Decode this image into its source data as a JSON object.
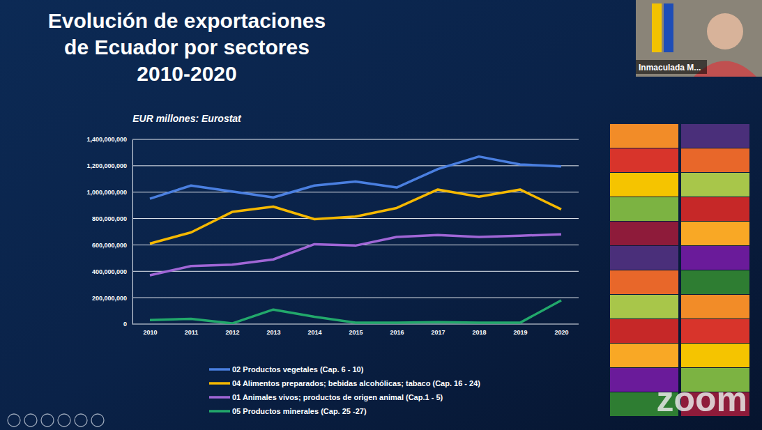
{
  "chart_data": {
    "type": "line",
    "title": "Evolución de exportaciones de Ecuador por sectores 2010-2020",
    "subtitle": "EUR millones: Eurostat",
    "categories": [
      "2010",
      "2011",
      "2012",
      "2013",
      "2014",
      "2015",
      "2016",
      "2017",
      "2018",
      "2019",
      "2020"
    ],
    "series": [
      {
        "name": "02 Productos vegetales (Cap. 6 - 10)",
        "color": "#4a7fe0",
        "values": [
          950000000,
          1050000000,
          1005000000,
          960000000,
          1050000000,
          1080000000,
          1035000000,
          1175000000,
          1270000000,
          1210000000,
          1195000000
        ]
      },
      {
        "name": "04 Alimentos preparados; bebidas alcohólicas; tabaco (Cap. 16 - 24)",
        "color": "#f5b800",
        "values": [
          610000000,
          695000000,
          850000000,
          890000000,
          795000000,
          815000000,
          880000000,
          1020000000,
          965000000,
          1020000000,
          870000000
        ]
      },
      {
        "name": "01 Animales vivos; productos de origen animal (Cap.1 - 5)",
        "color": "#a066d6",
        "values": [
          370000000,
          440000000,
          450000000,
          490000000,
          605000000,
          595000000,
          660000000,
          675000000,
          660000000,
          670000000,
          680000000
        ]
      },
      {
        "name": "05 Productos minerales (Cap. 25 -27)",
        "color": "#22a86b",
        "values": [
          30000000,
          40000000,
          5000000,
          110000000,
          55000000,
          10000000,
          10000000,
          15000000,
          10000000,
          10000000,
          180000000
        ]
      }
    ],
    "ylim": [
      0,
      1400000000
    ],
    "yticks": [
      0,
      {
        "value": 200000000,
        "label": "200,000,000"
      },
      {
        "value": 400000000,
        "label": "400,000,000"
      },
      {
        "value": 600000000,
        "label": "600,000,000"
      },
      {
        "value": 800000000,
        "label": "800,000,000"
      },
      {
        "value": 1000000000,
        "label": "1,000,000,000"
      },
      {
        "value": 1200000000,
        "label": "1,200,000,000"
      },
      {
        "value": 1400000000,
        "label": "1,400,000,000"
      }
    ],
    "grid": true,
    "legend": "bottom",
    "line_style": "solid",
    "annotations": [
      "Inmaculada M...",
      "zoom"
    ]
  }
}
